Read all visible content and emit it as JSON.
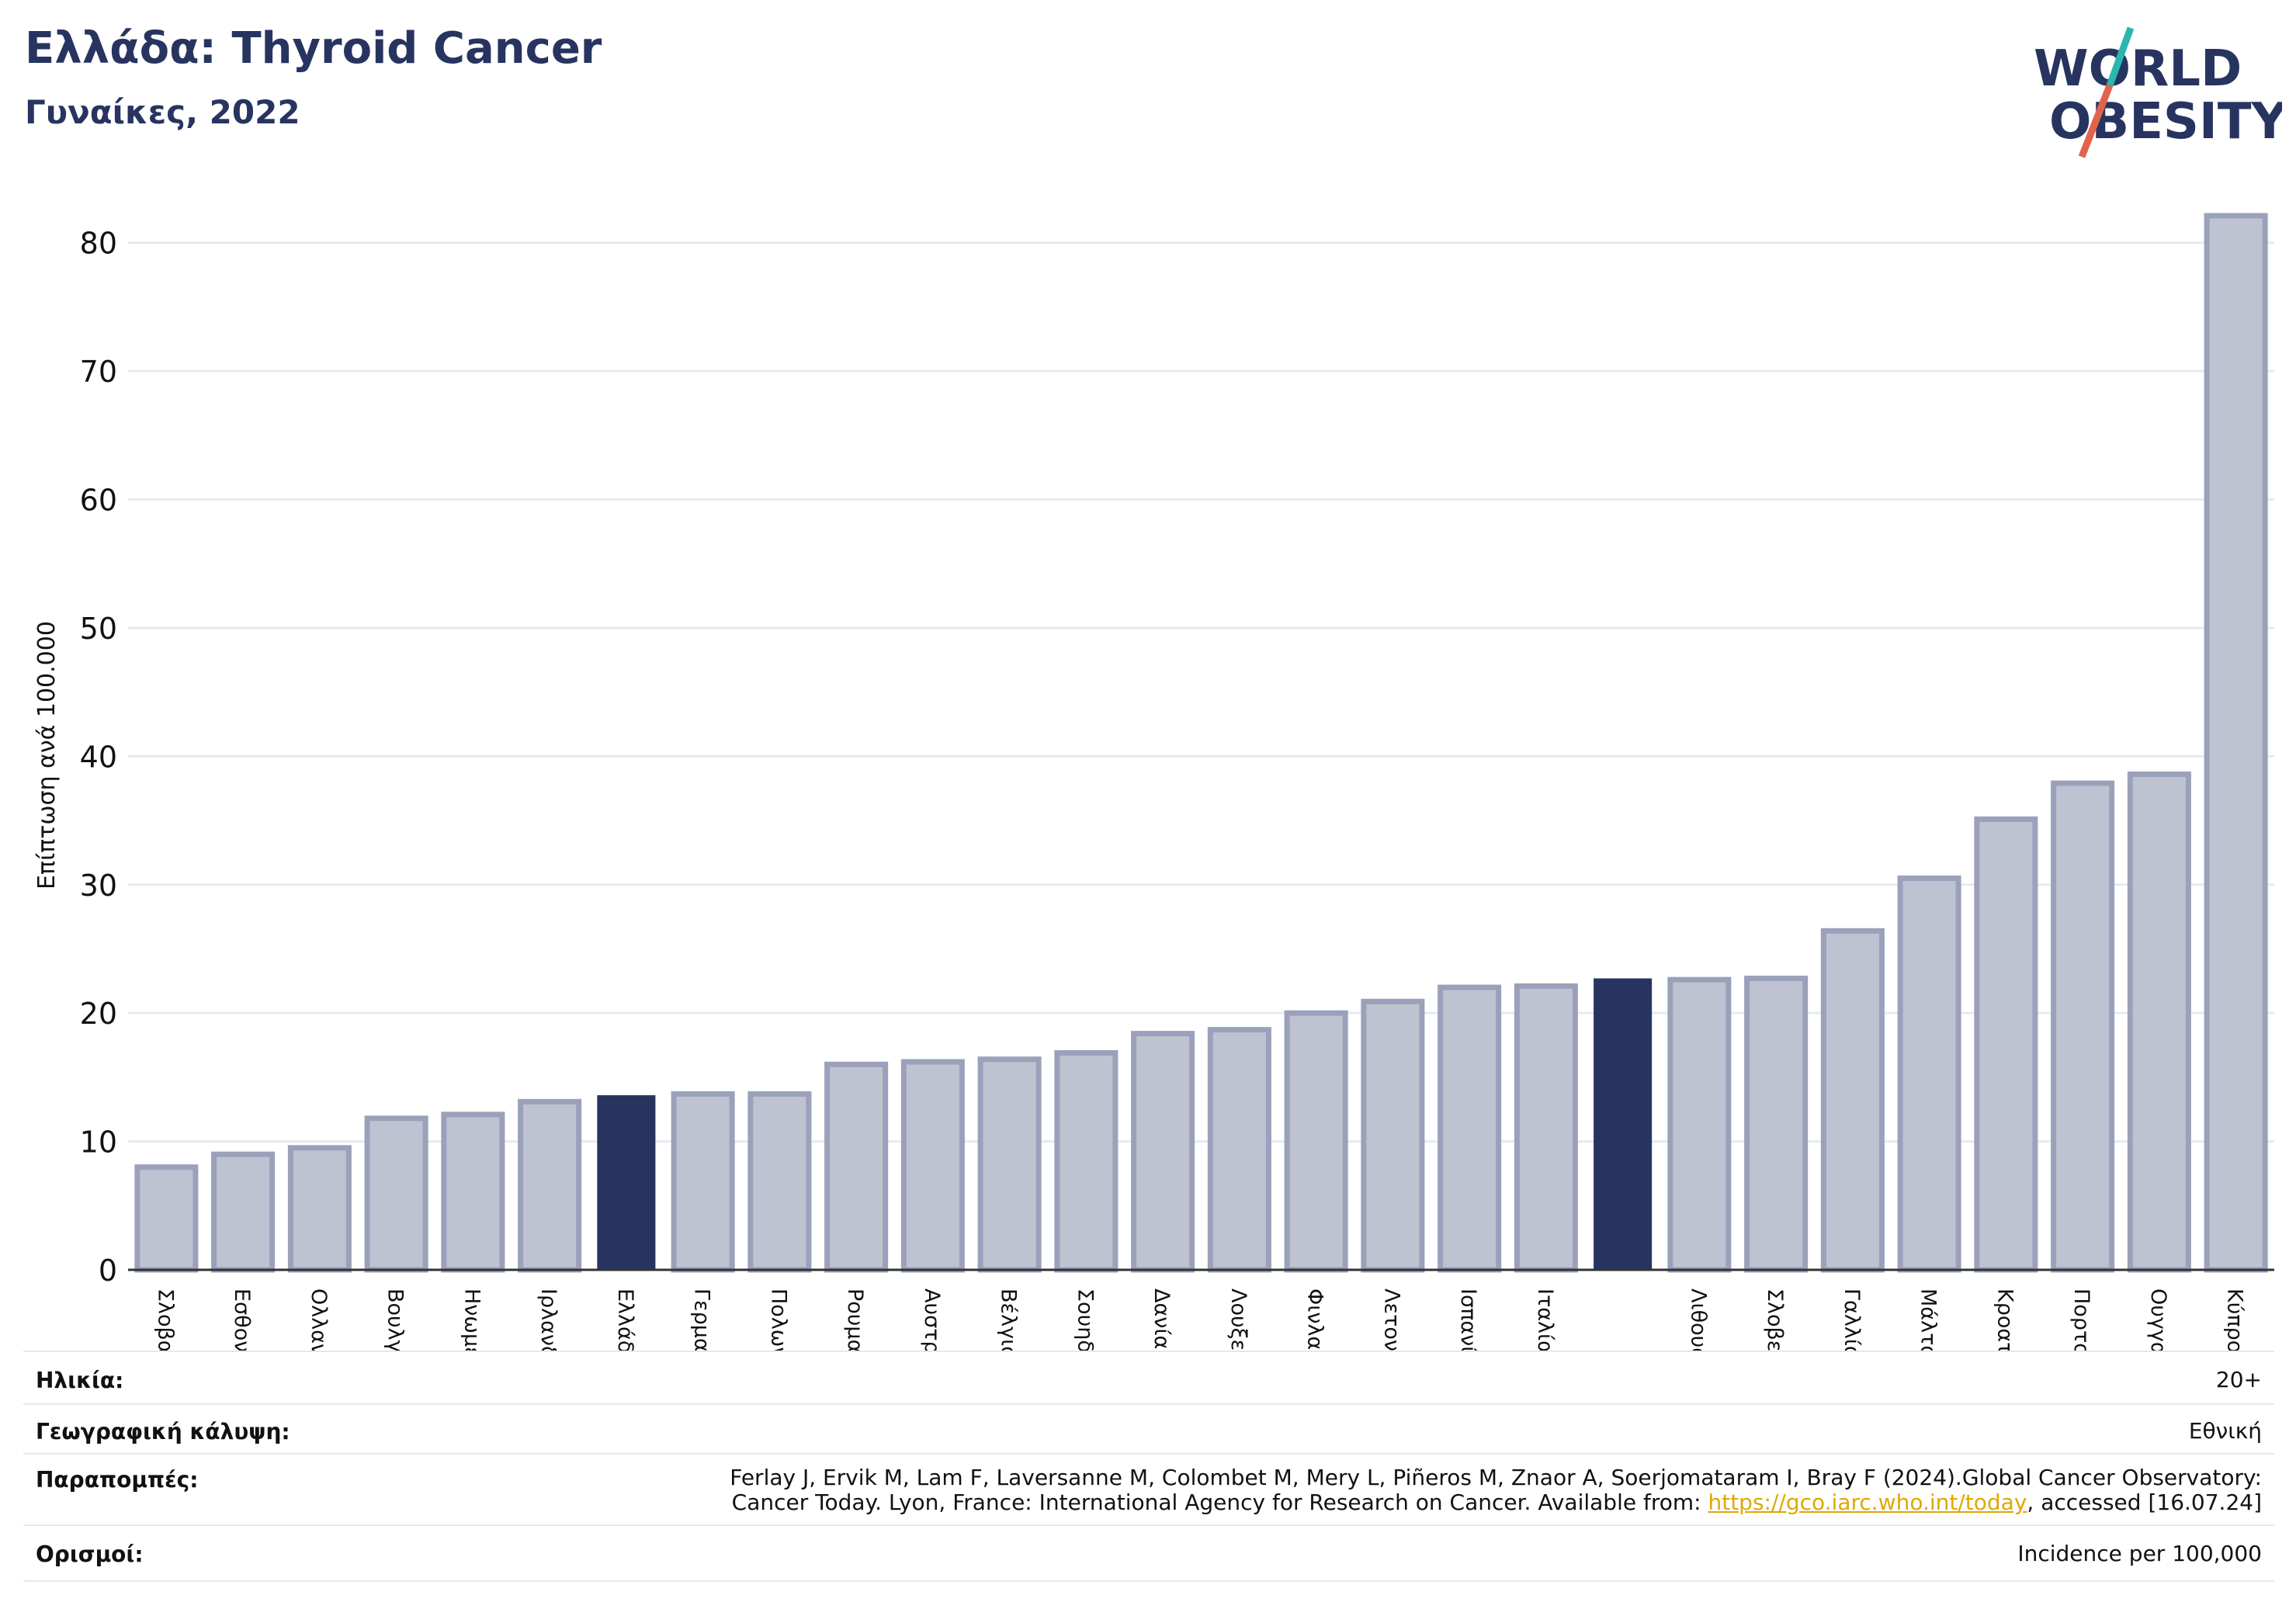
{
  "header": {
    "title": "Ελλάδα: Thyroid Cancer",
    "subtitle": "Γυναίκες, 2022"
  },
  "logo": {
    "line1": "WORLD",
    "line2": "OBESITY",
    "colors": {
      "text": "#283460",
      "slash_top": "#2bb5b0",
      "slash_bottom": "#e2634b"
    }
  },
  "chart_data": {
    "type": "bar",
    "ylabel": "Επίπτωση ανά 100.000",
    "ylim": [
      0,
      85
    ],
    "yticks": [
      0,
      10,
      20,
      30,
      40,
      50,
      60,
      70,
      80
    ],
    "grid": true,
    "categories": [
      "Σλοβακία",
      "Εσθονία",
      "Ολλανδία",
      "Βουλγαρία",
      "Ηνωμένο Βασίλειο",
      "Ιρλανδία",
      "Ελλάδα",
      "Γερμανία",
      "Πολωνία",
      "Ρουμανία",
      "Αυστρία",
      "Βέλγιο",
      "Σουηδία",
      "Δανία",
      "Λουξεμβούργο",
      "Φινλανδία",
      "Λετονία",
      "Ισπανία",
      "Ιταλία",
      "",
      "Λιθουανία",
      "Σλοβενία",
      "Γαλλία",
      "Μάλτα",
      "Κροατία",
      "Πορτογαλία",
      "Ουγγαρία",
      "Κύπρος"
    ],
    "values": [
      8.0,
      9.0,
      9.5,
      11.8,
      12.1,
      13.1,
      13.6,
      13.7,
      13.7,
      16.0,
      16.2,
      16.4,
      16.9,
      18.4,
      18.7,
      20.0,
      20.9,
      22.0,
      22.1,
      22.7,
      22.6,
      22.7,
      26.4,
      30.5,
      35.1,
      37.9,
      38.6,
      82.1
    ],
    "highlighted": [
      6,
      19
    ],
    "colors": {
      "bar_fill": "#bfc2d0",
      "bar_stroke": "#9ba1bb",
      "highlight": "#283460",
      "grid": "#e6e9f0",
      "axis": "#333333"
    }
  },
  "info": {
    "age_label": "Ηλικία:",
    "age_value": "20+",
    "coverage_label": "Γεωγραφική κάλυψη:",
    "coverage_value": "Εθνική",
    "refs_label": "Παραπομπές:",
    "refs_line1": "Ferlay J, Ervik M, Lam F, Laversanne M, Colombet M, Mery L, Piñeros M, Znaor A, Soerjomataram I, Bray F (2024).Global Cancer Observatory:",
    "refs_line2_pre": "Cancer Today. Lyon, France: International Agency for Research on Cancer. Available from: ",
    "refs_link": "https://gco.iarc.who.int/today",
    "refs_line2_post": ", accessed [16.07.24]",
    "defs_label": "Ορισμοί:",
    "defs_value": "Incidence per 100,000"
  }
}
